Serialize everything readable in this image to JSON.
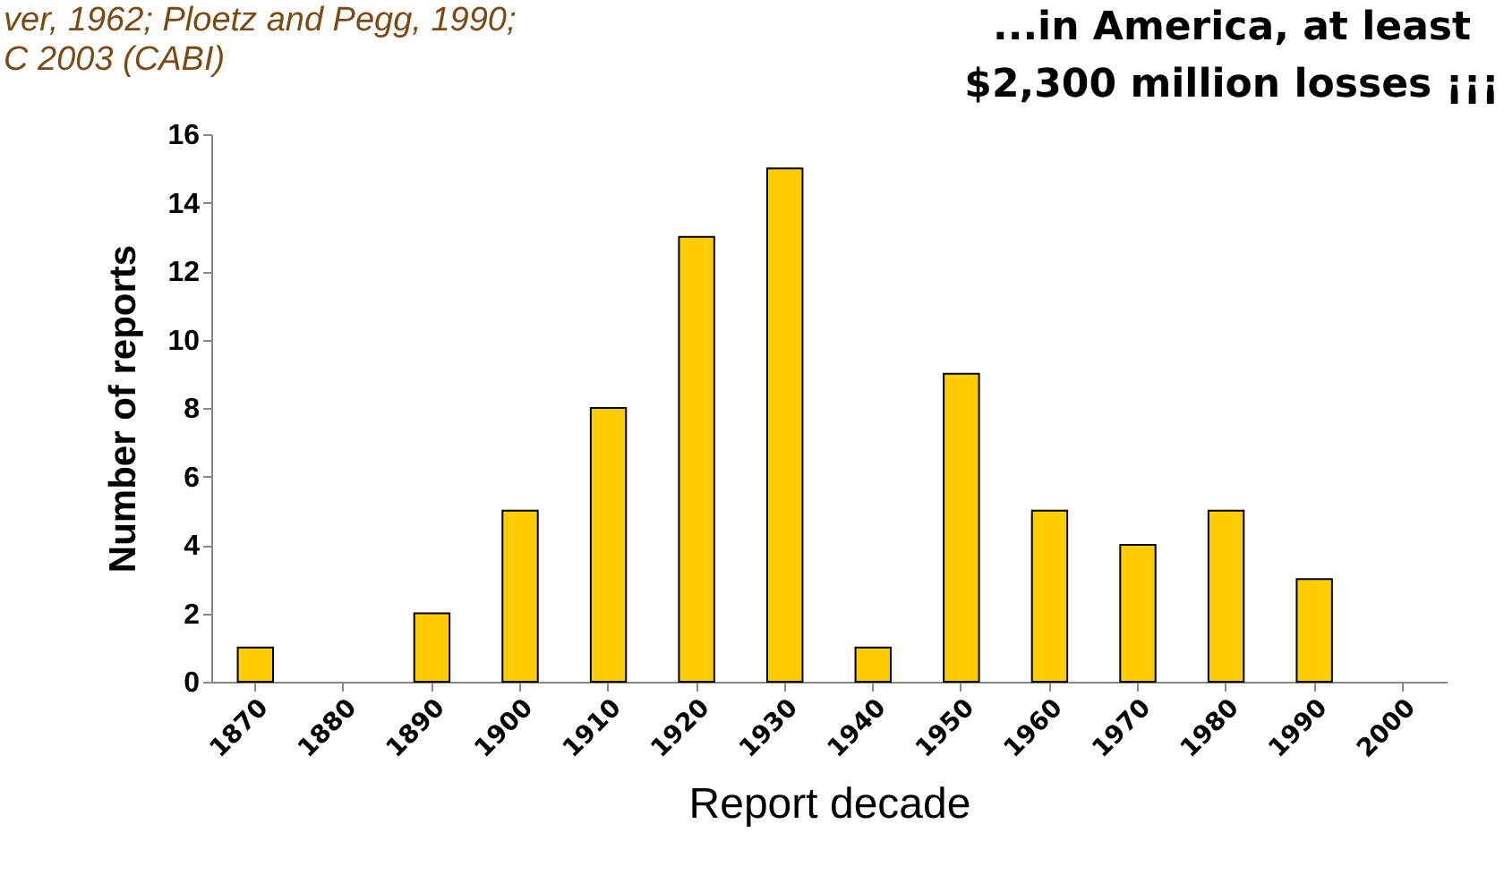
{
  "chart_data": {
    "type": "bar",
    "title": "...in America, at least\n$2,300 million losses ¡¡¡",
    "annotations": [
      "ver, 1962; Ploetz and Pegg, 1990;",
      "C 2003 (CABI)"
    ],
    "xlabel": "Report decade",
    "ylabel": "Number of reports",
    "categories": [
      "1870",
      "1880",
      "1890",
      "1900",
      "1910",
      "1920",
      "1930",
      "1940",
      "1950",
      "1960",
      "1970",
      "1980",
      "1990",
      "2000"
    ],
    "values": [
      1,
      0,
      2,
      5,
      8,
      13,
      15,
      1,
      9,
      5,
      4,
      5,
      3,
      0
    ],
    "color": "#ffcc00",
    "ylim": [
      0,
      16
    ],
    "yticks": [
      0,
      2,
      4,
      6,
      8,
      10,
      12,
      14,
      16
    ],
    "grid": false
  }
}
